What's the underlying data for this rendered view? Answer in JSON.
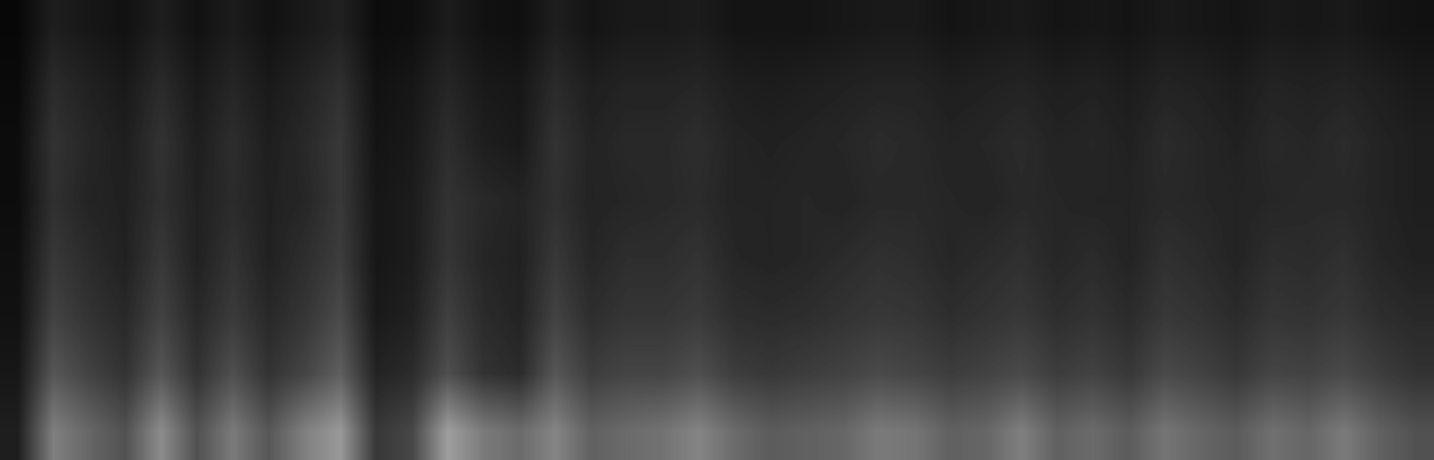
{
  "chart_data": {
    "type": "heatmap",
    "tick_labels": false,
    "color": "gray",
    "value_range": [
      0,
      1
    ],
    "cells": [
      [
        0.03,
        0.12,
        0.09,
        0.07,
        0.12,
        0.07,
        0.11,
        0.07,
        0.1,
        0.13,
        0.05,
        0.06,
        0.11,
        0.07,
        0.06,
        0.12,
        0.08,
        0.1,
        0.1,
        0.11,
        0.08,
        0.08,
        0.08,
        0.09,
        0.1,
        0.1,
        0.08,
        0.09,
        0.1,
        0.08,
        0.09,
        0.08,
        0.1,
        0.09,
        0.08,
        0.1,
        0.09,
        0.1,
        0.08,
        0.07
      ],
      [
        0.04,
        0.17,
        0.13,
        0.1,
        0.17,
        0.1,
        0.15,
        0.1,
        0.14,
        0.19,
        0.07,
        0.09,
        0.15,
        0.1,
        0.09,
        0.17,
        0.12,
        0.14,
        0.14,
        0.15,
        0.12,
        0.11,
        0.12,
        0.13,
        0.14,
        0.14,
        0.12,
        0.13,
        0.14,
        0.12,
        0.13,
        0.11,
        0.14,
        0.13,
        0.11,
        0.14,
        0.13,
        0.14,
        0.12,
        0.1
      ],
      [
        0.05,
        0.2,
        0.15,
        0.12,
        0.2,
        0.12,
        0.18,
        0.12,
        0.16,
        0.22,
        0.08,
        0.1,
        0.18,
        0.12,
        0.1,
        0.2,
        0.14,
        0.16,
        0.16,
        0.18,
        0.14,
        0.13,
        0.14,
        0.15,
        0.17,
        0.16,
        0.14,
        0.15,
        0.17,
        0.14,
        0.15,
        0.13,
        0.17,
        0.15,
        0.13,
        0.16,
        0.15,
        0.17,
        0.14,
        0.12
      ],
      [
        0.05,
        0.19,
        0.14,
        0.13,
        0.19,
        0.13,
        0.17,
        0.13,
        0.15,
        0.22,
        0.09,
        0.11,
        0.2,
        0.16,
        0.14,
        0.19,
        0.14,
        0.15,
        0.16,
        0.17,
        0.14,
        0.14,
        0.15,
        0.14,
        0.16,
        0.16,
        0.15,
        0.14,
        0.16,
        0.15,
        0.14,
        0.14,
        0.16,
        0.15,
        0.14,
        0.15,
        0.16,
        0.16,
        0.14,
        0.12
      ],
      [
        0.06,
        0.22,
        0.17,
        0.13,
        0.22,
        0.13,
        0.2,
        0.13,
        0.18,
        0.24,
        0.09,
        0.11,
        0.21,
        0.15,
        0.13,
        0.22,
        0.15,
        0.18,
        0.18,
        0.2,
        0.15,
        0.14,
        0.15,
        0.17,
        0.19,
        0.18,
        0.15,
        0.17,
        0.19,
        0.15,
        0.17,
        0.14,
        0.19,
        0.17,
        0.14,
        0.18,
        0.17,
        0.19,
        0.15,
        0.13
      ],
      [
        0.07,
        0.26,
        0.2,
        0.16,
        0.26,
        0.16,
        0.23,
        0.16,
        0.21,
        0.29,
        0.1,
        0.13,
        0.25,
        0.17,
        0.14,
        0.26,
        0.18,
        0.21,
        0.21,
        0.23,
        0.18,
        0.17,
        0.18,
        0.2,
        0.22,
        0.21,
        0.18,
        0.2,
        0.22,
        0.18,
        0.2,
        0.17,
        0.22,
        0.2,
        0.17,
        0.21,
        0.2,
        0.22,
        0.18,
        0.16
      ],
      [
        0.09,
        0.34,
        0.26,
        0.2,
        0.34,
        0.2,
        0.31,
        0.2,
        0.27,
        0.37,
        0.14,
        0.17,
        0.31,
        0.2,
        0.17,
        0.34,
        0.24,
        0.27,
        0.27,
        0.31,
        0.24,
        0.22,
        0.24,
        0.26,
        0.29,
        0.27,
        0.24,
        0.26,
        0.29,
        0.24,
        0.26,
        0.22,
        0.29,
        0.26,
        0.22,
        0.27,
        0.26,
        0.29,
        0.24,
        0.2
      ],
      [
        0.12,
        0.5,
        0.4,
        0.32,
        0.55,
        0.32,
        0.48,
        0.34,
        0.5,
        0.6,
        0.22,
        0.28,
        0.62,
        0.48,
        0.42,
        0.52,
        0.38,
        0.42,
        0.45,
        0.52,
        0.42,
        0.36,
        0.38,
        0.4,
        0.48,
        0.46,
        0.38,
        0.4,
        0.5,
        0.38,
        0.42,
        0.36,
        0.46,
        0.4,
        0.36,
        0.44,
        0.4,
        0.48,
        0.38,
        0.32
      ]
    ]
  }
}
